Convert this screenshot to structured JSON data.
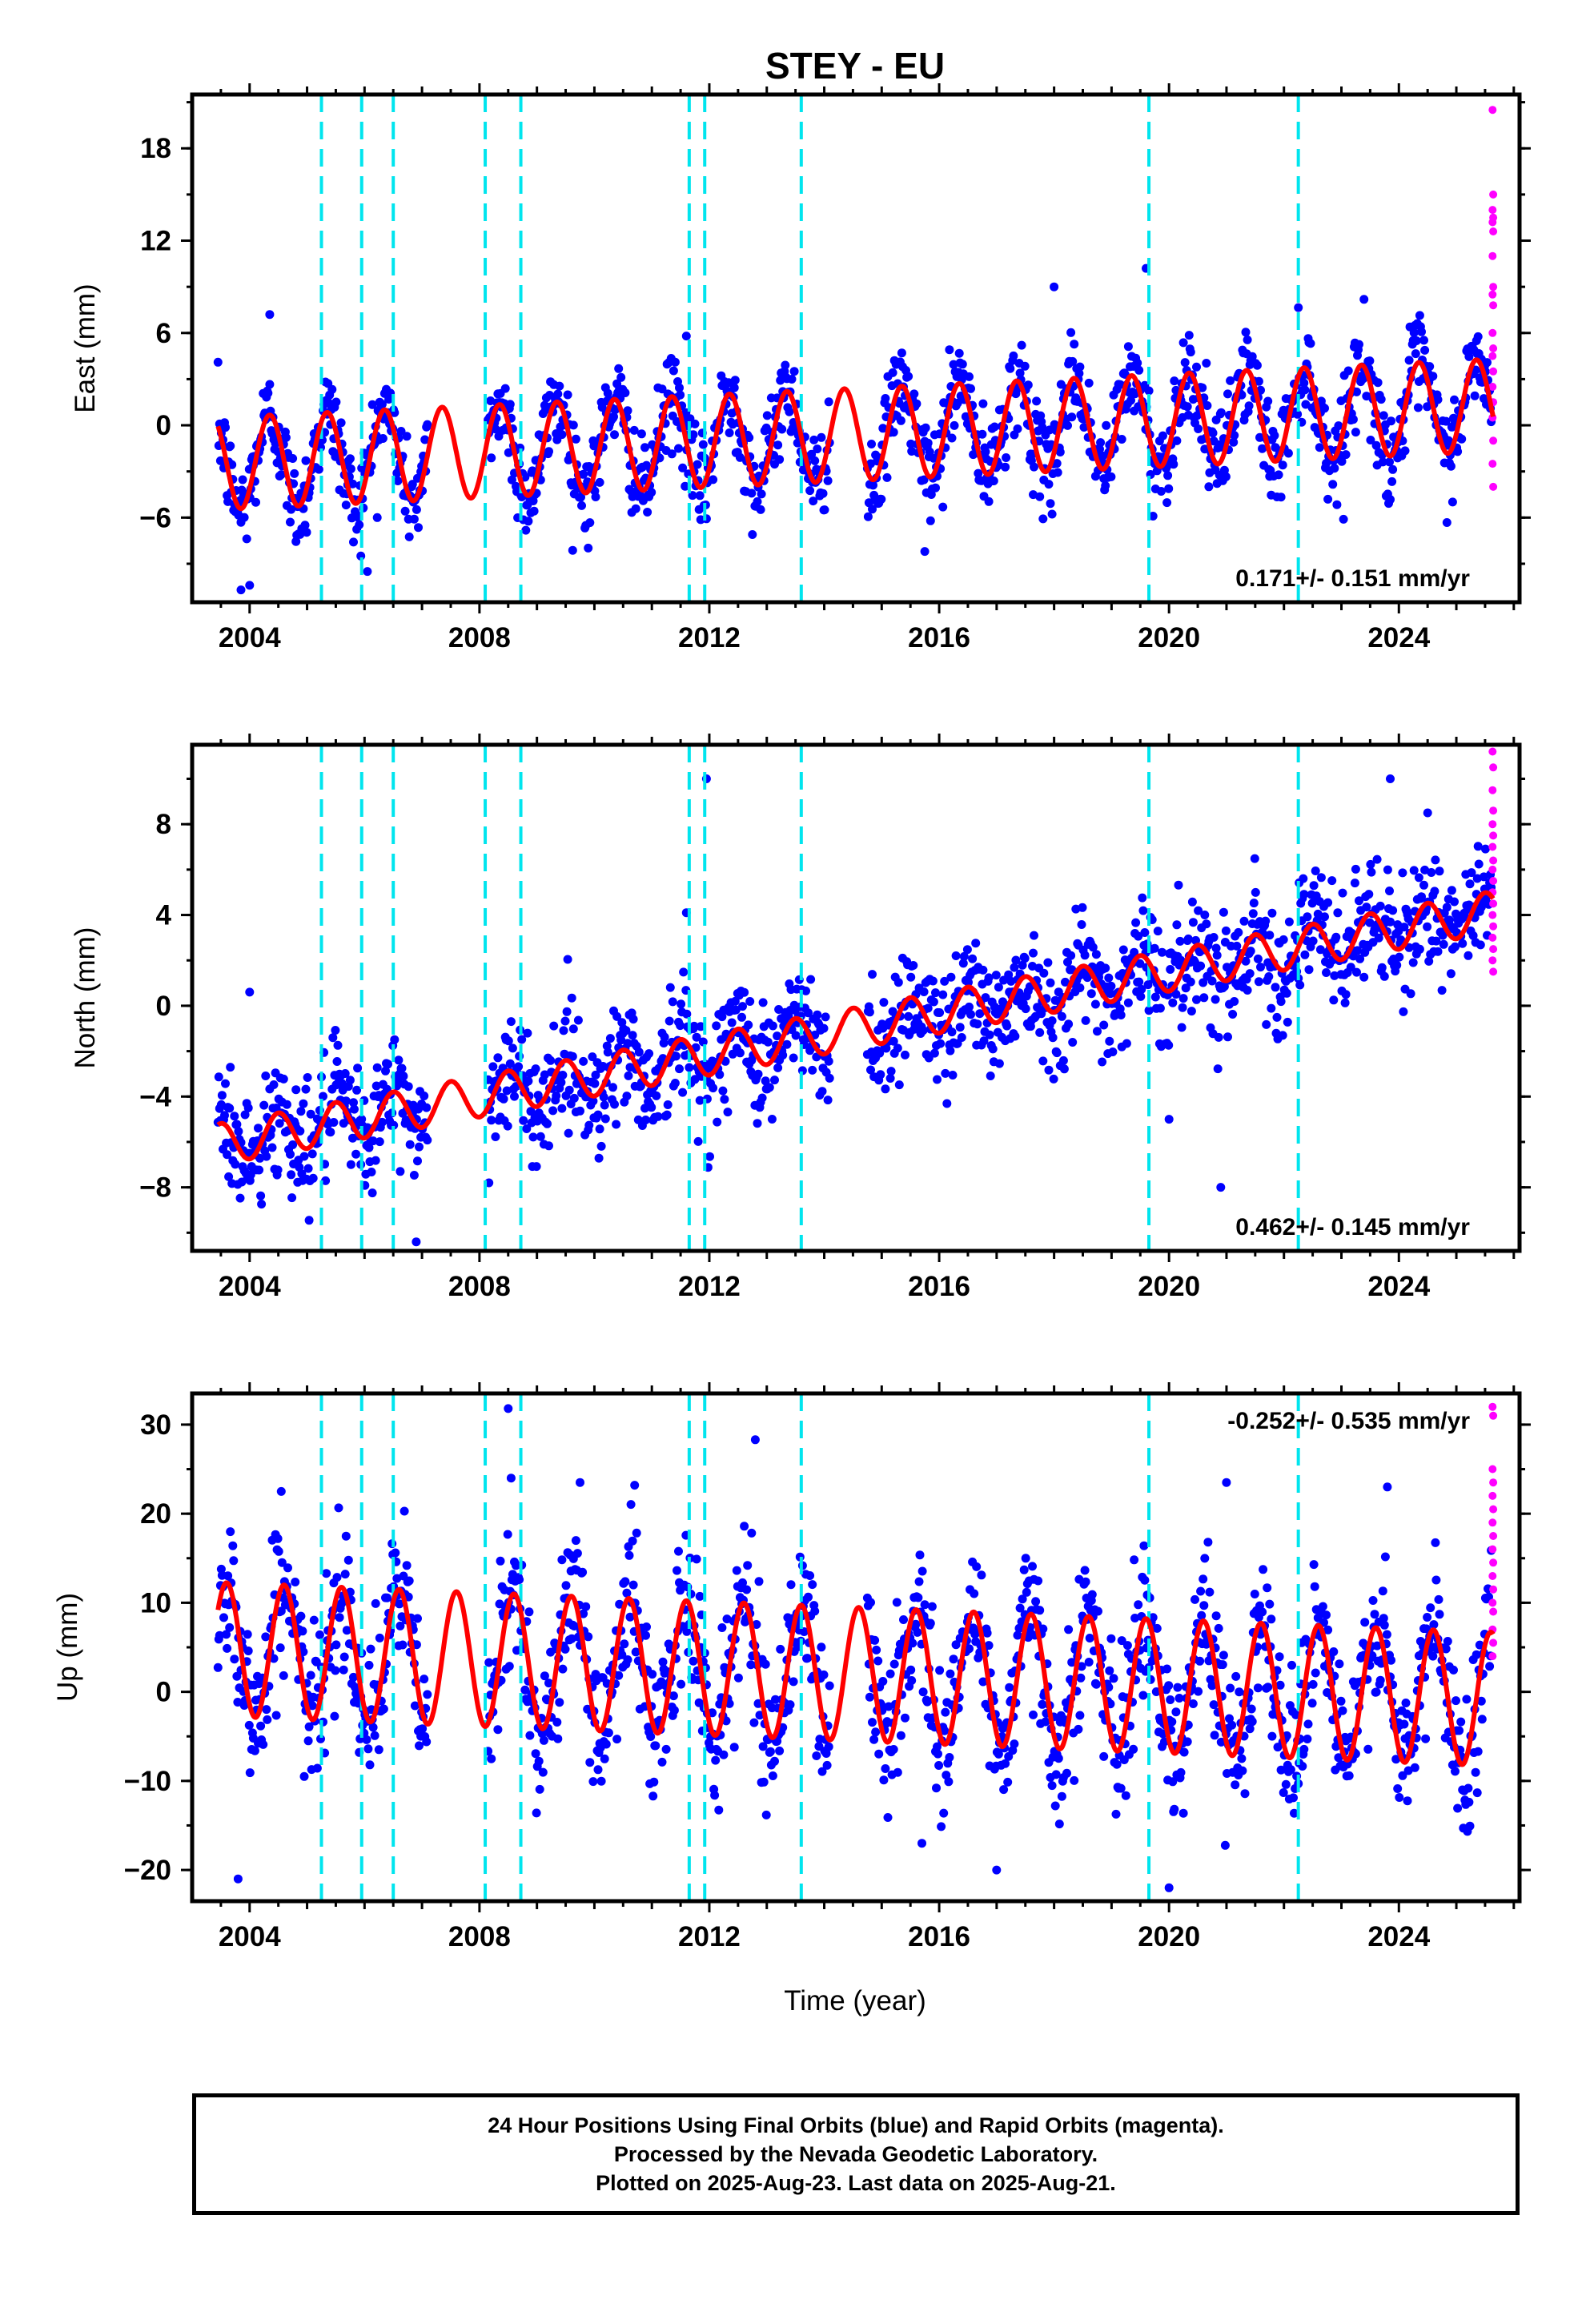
{
  "title": "STEY - EU",
  "xlabel": "Time (year)",
  "colors": {
    "final_orbits": "#0000ff",
    "rapid_orbits": "#ff00ff",
    "model": "#ff0000",
    "events": "#00e5ee",
    "frame": "#000000"
  },
  "footer": {
    "line1": "24 Hour Positions Using Final Orbits (blue) and Rapid Orbits (magenta).",
    "line2": "Processed by the Nevada Geodetic Laboratory.",
    "line3": "Plotted on 2025-Aug-23. Last data on 2025-Aug-21."
  },
  "chart_data": [
    {
      "type": "scatter",
      "component": "East",
      "ylabel": "East (mm)",
      "xlim": [
        2003.0,
        2026.1
      ],
      "ylim": [
        -11.5,
        21.5
      ],
      "xticks": [
        2004,
        2008,
        2012,
        2016,
        2020,
        2024
      ],
      "yticks": [
        -6,
        0,
        6,
        12,
        18
      ],
      "velocity_label": "0.171+/- 0.151 mm/yr",
      "velocity_position": "bottom-right",
      "data_start": 2003.45,
      "data_end": 2025.64,
      "gaps": [
        [
          2007.1,
          2008.15
        ],
        [
          2014.1,
          2014.75
        ]
      ],
      "trend_mm_per_yr": 0.171,
      "offset_mm": -0.6,
      "seasonal_amplitude_mm": 3.0,
      "seasonal_peak_phase_yr": 0.35,
      "scatter_sigma_mm": 1.5,
      "rapid_points_mm": [
        20.5,
        15.0,
        14.0,
        13.5,
        13.2,
        12.6,
        11.0,
        9.0,
        8.5,
        7.8,
        6.0,
        5.0,
        4.5,
        3.5,
        2.5,
        1.5,
        0.5,
        -1.0,
        -2.5,
        -4.0
      ],
      "outliers": [
        [
          2003.85,
          -10.7
        ],
        [
          2004.0,
          -10.4
        ],
        [
          2006.05,
          -9.5
        ],
        [
          2015.75,
          -8.2
        ],
        [
          2019.6,
          10.2
        ],
        [
          2018.0,
          9.0
        ],
        [
          2011.6,
          5.8
        ],
        [
          2004.35,
          7.2
        ]
      ]
    },
    {
      "type": "scatter",
      "component": "North",
      "ylabel": "North (mm)",
      "xlim": [
        2003.0,
        2026.1
      ],
      "ylim": [
        -10.8,
        11.5
      ],
      "xticks": [
        2004,
        2008,
        2012,
        2016,
        2020,
        2024
      ],
      "yticks": [
        -8,
        -4,
        0,
        4,
        8
      ],
      "velocity_label": "0.462+/- 0.145 mm/yr",
      "velocity_position": "bottom-right",
      "data_start": 2003.45,
      "data_end": 2025.64,
      "gaps": [
        [
          2007.1,
          2008.15
        ],
        [
          2014.1,
          2014.75
        ]
      ],
      "trend_mm_per_yr": 0.462,
      "offset_mm": -1.0,
      "seasonal_amplitude_mm": 0.9,
      "seasonal_peak_phase_yr": 0.5,
      "scatter_sigma_mm": 1.3,
      "rapid_points_mm": [
        11.2,
        10.5,
        9.5,
        8.6,
        8.0,
        7.5,
        7.0,
        6.4,
        6.0,
        5.5,
        5.0,
        4.5,
        4.0,
        3.5,
        3.0,
        2.5,
        2.0,
        1.5
      ],
      "outliers": [
        [
          2011.95,
          10.0
        ],
        [
          2011.6,
          4.1
        ],
        [
          2004.0,
          0.6
        ],
        [
          2020.0,
          -5.0
        ],
        [
          2020.9,
          -8.0
        ],
        [
          2006.9,
          -10.4
        ],
        [
          2023.85,
          10.0
        ],
        [
          2024.5,
          8.5
        ]
      ]
    },
    {
      "type": "scatter",
      "component": "Up",
      "ylabel": "Up (mm)",
      "xlim": [
        2003.0,
        2026.1
      ],
      "ylim": [
        -23.5,
        33.5
      ],
      "xticks": [
        2004,
        2008,
        2012,
        2016,
        2020,
        2024
      ],
      "yticks": [
        -20,
        -10,
        0,
        10,
        20,
        30
      ],
      "velocity_label": "-0.252+/- 0.535 mm/yr",
      "velocity_position": "top-right",
      "data_start": 2003.45,
      "data_end": 2025.64,
      "gaps": [
        [
          2007.1,
          2008.15
        ],
        [
          2014.1,
          2014.75
        ]
      ],
      "trend_mm_per_yr": -0.252,
      "offset_mm": 2.0,
      "seasonal_amplitude_mm": 7.5,
      "seasonal_peak_phase_yr": 0.6,
      "scatter_sigma_mm": 4.2,
      "rapid_points_mm": [
        32.0,
        31.0,
        25.0,
        23.5,
        22.0,
        20.5,
        19.0,
        17.5,
        16.0,
        14.5,
        13.0,
        11.5,
        10.0,
        9.0,
        7.0,
        5.5,
        4.0
      ],
      "outliers": [
        [
          2008.5,
          31.8
        ],
        [
          2008.55,
          24.0
        ],
        [
          2012.8,
          28.3
        ],
        [
          2021.0,
          23.5
        ],
        [
          2023.8,
          23.0
        ],
        [
          2004.55,
          22.5
        ],
        [
          2009.75,
          23.5
        ],
        [
          2010.7,
          23.2
        ],
        [
          2003.8,
          -21.0
        ],
        [
          2020.0,
          -22.0
        ],
        [
          2015.7,
          -17.0
        ],
        [
          2017.0,
          -20.0
        ]
      ]
    }
  ],
  "event_lines": [
    2005.25,
    2005.95,
    2006.5,
    2008.1,
    2008.72,
    2011.65,
    2011.92,
    2013.6,
    2019.65,
    2022.25
  ]
}
